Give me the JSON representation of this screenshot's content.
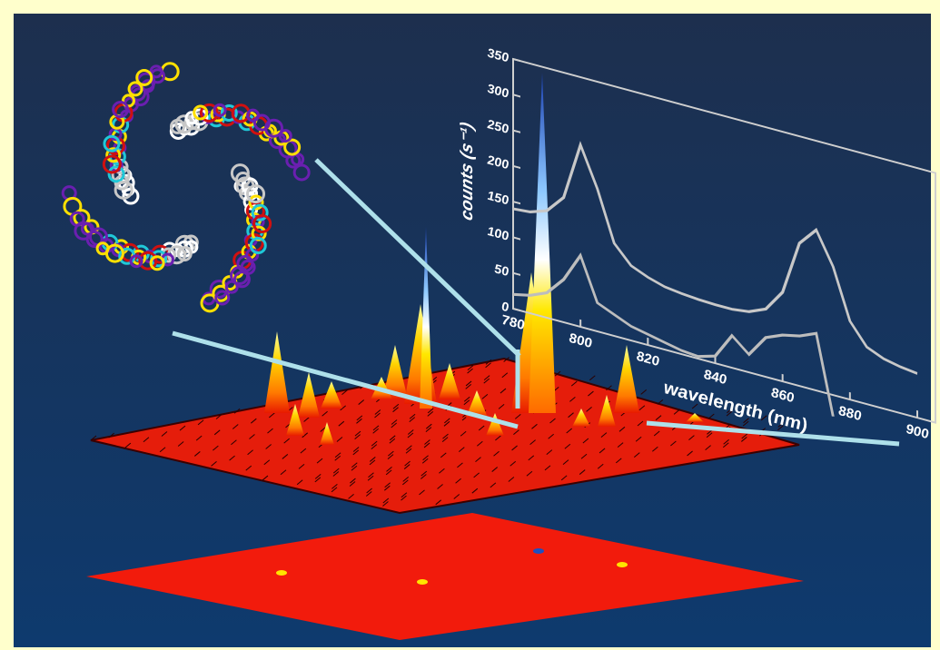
{
  "chart_data": {
    "type": "line",
    "x_label": "wavelength (nm)",
    "y_label": "counts (s⁻¹)",
    "x": [
      780,
      785,
      790,
      795,
      800,
      805,
      810,
      815,
      820,
      825,
      830,
      835,
      840,
      845,
      850,
      855,
      860,
      865,
      870,
      875,
      880,
      885,
      890,
      895,
      900
    ],
    "series": [
      {
        "color": "#c8c8c8",
        "values": [
          140,
          142,
          150,
          175,
          255,
          200,
          130,
          105,
          95,
          88,
          85,
          83,
          82,
          82,
          85,
          95,
          125,
          200,
          225,
          180,
          110,
          80,
          70,
          65,
          62
        ]
      },
      {
        "color": "#bdbdbd",
        "values": [
          20,
          25,
          35,
          60,
          100,
          40,
          30,
          20,
          15,
          10,
          5,
          3,
          10,
          45,
          25,
          55,
          65,
          70,
          80,
          -30,
          null,
          null,
          null,
          null,
          null
        ]
      }
    ],
    "xlim": [
      780,
      900
    ],
    "xticks": [
      780,
      800,
      820,
      840,
      860,
      880,
      900
    ],
    "ylim": [
      0,
      350
    ],
    "yticks": [
      0,
      50,
      100,
      150,
      200,
      250,
      300,
      350
    ]
  }
}
